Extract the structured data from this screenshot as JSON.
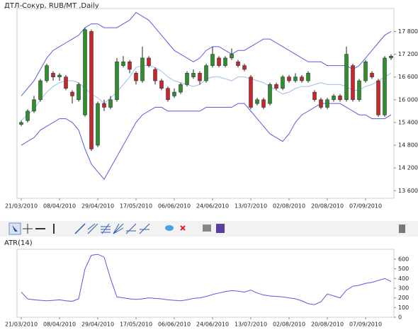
{
  "chart_data": [
    {
      "type": "candlestick",
      "title": "ДТЛ-Сокур,  RUB/MT ,Daily",
      "categories": [
        "21/03/2010",
        null,
        null,
        null,
        null,
        null,
        "08/04/2010",
        null,
        null,
        null,
        null,
        null,
        "29/04/2010",
        null,
        null,
        null,
        null,
        null,
        "17/05/2010",
        null,
        null,
        null,
        null,
        null,
        "06/06/2010",
        null,
        null,
        null,
        null,
        null,
        "24/06/2010",
        null,
        null,
        null,
        null,
        null,
        "13/07/2010",
        null,
        null,
        null,
        null,
        null,
        "02/08/2010",
        null,
        null,
        null,
        null,
        null,
        "20/08/2010",
        null,
        null,
        null,
        null,
        null,
        "07/09/2010",
        null,
        null,
        null,
        null
      ],
      "open": [
        15350,
        15450,
        15700,
        16000,
        16500,
        16700,
        16600,
        16600,
        16200,
        16000,
        15600,
        17800,
        14800,
        15900,
        15800,
        16000,
        16900,
        17000,
        16700,
        16500,
        17100,
        16800,
        16500,
        16300,
        16100,
        16200,
        16400,
        16600,
        16700,
        16500,
        16900,
        17100,
        16900,
        17100,
        17000,
        16900,
        16600,
        15900,
        16000,
        15900,
        16400,
        16300,
        16600,
        16500,
        16600,
        16500,
        16200,
        16000,
        15800,
        16000,
        16100,
        16000,
        16900,
        16000,
        16500,
        16700,
        16500,
        15600,
        17100
      ],
      "high": [
        15450,
        15750,
        16100,
        16550,
        16950,
        16750,
        16700,
        16650,
        16250,
        16450,
        17900,
        17850,
        15950,
        16000,
        16100,
        17100,
        17150,
        17050,
        16750,
        17400,
        17150,
        16850,
        16550,
        16350,
        16300,
        16450,
        16750,
        16800,
        16750,
        16950,
        17400,
        17150,
        17150,
        17350,
        17050,
        16950,
        16650,
        16050,
        16050,
        16450,
        16450,
        16650,
        16650,
        16700,
        16650,
        16750,
        16250,
        16050,
        16050,
        16150,
        16150,
        17400,
        16950,
        16550,
        17050,
        16750,
        16550,
        17150,
        17200
      ],
      "low": [
        15300,
        15400,
        15650,
        15950,
        16450,
        16500,
        16500,
        16250,
        15900,
        15950,
        15550,
        14650,
        14750,
        15700,
        15750,
        15950,
        16850,
        16700,
        16400,
        16450,
        16850,
        16400,
        16250,
        15950,
        16050,
        16150,
        16350,
        16550,
        16400,
        16450,
        16850,
        16850,
        16850,
        17050,
        16850,
        16750,
        15750,
        15850,
        15750,
        15850,
        16250,
        16250,
        16450,
        16450,
        16450,
        16450,
        15950,
        15750,
        15750,
        15950,
        15950,
        15950,
        15950,
        15950,
        16450,
        16550,
        15550,
        15550,
        17050
      ],
      "close": [
        15400,
        15700,
        16000,
        16500,
        16900,
        16600,
        16650,
        16300,
        16100,
        16400,
        17850,
        14700,
        15900,
        15800,
        16000,
        17000,
        17000,
        16800,
        16500,
        17100,
        16900,
        16500,
        16300,
        16000,
        16200,
        16400,
        16700,
        16700,
        16500,
        16900,
        17200,
        16900,
        17100,
        17200,
        16900,
        16800,
        15800,
        16000,
        15800,
        16400,
        16300,
        16600,
        16500,
        16600,
        16500,
        16700,
        16000,
        15800,
        16000,
        16100,
        16000,
        17200,
        16000,
        16500,
        17000,
        16600,
        15600,
        17100,
        17150
      ],
      "upper": [
        16100,
        16300,
        16500,
        16800,
        17100,
        17300,
        17400,
        17500,
        17600,
        17700,
        17900,
        18000,
        18000,
        17900,
        17900,
        17900,
        18000,
        18100,
        18300,
        18200,
        18100,
        17900,
        17700,
        17500,
        17300,
        17200,
        17100,
        17000,
        17100,
        17300,
        17400,
        17400,
        17300,
        17200,
        17300,
        17300,
        17400,
        17500,
        17600,
        17600,
        17500,
        17400,
        17300,
        17200,
        17100,
        17000,
        17000,
        17000,
        16900,
        16900,
        16900,
        16900,
        16800,
        16900,
        17100,
        17300,
        17500,
        17700,
        17800
      ],
      "middle": [
        15450,
        15600,
        15750,
        16000,
        16200,
        16350,
        16450,
        16500,
        16500,
        16450,
        16300,
        16150,
        16050,
        15900,
        16050,
        16200,
        16400,
        16600,
        16850,
        16900,
        16900,
        16850,
        16750,
        16600,
        16500,
        16450,
        16400,
        16350,
        16400,
        16550,
        16600,
        16600,
        16550,
        16500,
        16600,
        16600,
        16550,
        16500,
        16450,
        16350,
        16250,
        16150,
        16200,
        16300,
        16350,
        16350,
        16400,
        16450,
        16400,
        16400,
        16400,
        16350,
        16250,
        16250,
        16350,
        16400,
        16500,
        16600,
        16700
      ],
      "lower": [
        14800,
        14900,
        15000,
        15200,
        15300,
        15400,
        15500,
        15500,
        15400,
        15200,
        14700,
        14300,
        14100,
        13900,
        14200,
        14500,
        14800,
        15100,
        15400,
        15600,
        15700,
        15800,
        15800,
        15700,
        15700,
        15700,
        15700,
        15700,
        15700,
        15800,
        15800,
        15800,
        15800,
        15800,
        15900,
        15900,
        15700,
        15500,
        15300,
        15100,
        15000,
        14900,
        15100,
        15400,
        15600,
        15700,
        15800,
        15900,
        15900,
        15900,
        15900,
        15800,
        15700,
        15600,
        15600,
        15500,
        15500,
        15500,
        15600
      ],
      "up_color": "#2f8f2f",
      "down_color": "#c8262c",
      "band_color": "#5a5ae0",
      "middle_color": "#9fbde8",
      "ylim": [
        13400,
        18350
      ],
      "yticks": [
        {
          "value": 13600,
          "label": "13 600"
        },
        {
          "value": 14200,
          "label": "14 200"
        },
        {
          "value": 14800,
          "label": "14 800"
        },
        {
          "value": 15400,
          "label": "15 400"
        },
        {
          "value": 16000,
          "label": "16 000"
        },
        {
          "value": 16600,
          "label": "16 600"
        },
        {
          "value": 17200,
          "label": "17 200"
        },
        {
          "value": 17800,
          "label": "17 800"
        }
      ]
    },
    {
      "type": "line",
      "title": "ATR(14)",
      "categories": [
        "21/03/2010",
        null,
        null,
        null,
        null,
        null,
        "08/04/2010",
        null,
        null,
        null,
        null,
        null,
        "29/04/2010",
        null,
        null,
        null,
        null,
        null,
        "17/05/2010",
        null,
        null,
        null,
        null,
        null,
        "06/06/2010",
        null,
        null,
        null,
        null,
        null,
        "24/06/2010",
        null,
        null,
        null,
        null,
        null,
        "13/07/2010",
        null,
        null,
        null,
        null,
        null,
        "02/08/2010",
        null,
        null,
        null,
        null,
        null,
        "20/08/2010",
        null,
        null,
        null,
        null,
        null,
        "07/09/2010",
        null,
        null,
        null,
        null
      ],
      "values": [
        260,
        190,
        180,
        175,
        170,
        175,
        180,
        170,
        165,
        190,
        500,
        640,
        650,
        620,
        400,
        210,
        200,
        190,
        185,
        190,
        200,
        195,
        190,
        180,
        175,
        170,
        180,
        195,
        200,
        215,
        235,
        250,
        265,
        275,
        270,
        260,
        280,
        250,
        230,
        220,
        215,
        210,
        200,
        190,
        170,
        140,
        130,
        160,
        240,
        220,
        200,
        280,
        320,
        330,
        350,
        360,
        380,
        400,
        370
      ],
      "color": "#5a5ae0",
      "ylim": [
        0,
        680
      ],
      "yticks": [
        0,
        100,
        200,
        300,
        400,
        500,
        600
      ]
    }
  ]
}
